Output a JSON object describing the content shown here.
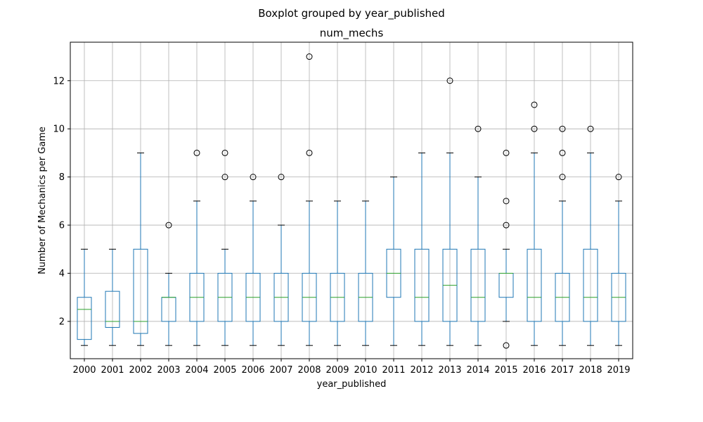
{
  "chart_data": {
    "type": "box",
    "suptitle": "Boxplot grouped by year_published",
    "title": "num_mechs",
    "xlabel": "year_published",
    "ylabel": "Number of Mechanics per Game",
    "ylim": [
      0.45,
      13.6
    ],
    "yticks": [
      2,
      4,
      6,
      8,
      10,
      12
    ],
    "grid": true,
    "colors": {
      "box": "#1f77b4",
      "median": "#2ca02c",
      "whisker": "#1f77b4",
      "cap": "#000000",
      "flier": "#000000",
      "grid": "#b0b0b0"
    },
    "categories": [
      "2000",
      "2001",
      "2002",
      "2003",
      "2004",
      "2005",
      "2006",
      "2007",
      "2008",
      "2009",
      "2010",
      "2011",
      "2012",
      "2013",
      "2014",
      "2015",
      "2016",
      "2017",
      "2018",
      "2019"
    ],
    "boxes": [
      {
        "q1": 1.25,
        "median": 2.5,
        "q3": 3,
        "whislo": 1,
        "whishi": 5,
        "fliers": []
      },
      {
        "q1": 1.75,
        "median": 2,
        "q3": 3.25,
        "whislo": 1,
        "whishi": 5,
        "fliers": []
      },
      {
        "q1": 1.5,
        "median": 2,
        "q3": 5,
        "whislo": 1,
        "whishi": 9,
        "fliers": []
      },
      {
        "q1": 2,
        "median": 3,
        "q3": 3,
        "whislo": 1,
        "whishi": 4,
        "fliers": [
          6
        ]
      },
      {
        "q1": 2,
        "median": 3,
        "q3": 4,
        "whislo": 1,
        "whishi": 7,
        "fliers": [
          9
        ]
      },
      {
        "q1": 2,
        "median": 3,
        "q3": 4,
        "whislo": 1,
        "whishi": 5,
        "fliers": [
          8,
          9
        ]
      },
      {
        "q1": 2,
        "median": 3,
        "q3": 4,
        "whislo": 1,
        "whishi": 7,
        "fliers": [
          8
        ]
      },
      {
        "q1": 2,
        "median": 3,
        "q3": 4,
        "whislo": 1,
        "whishi": 6,
        "fliers": [
          8
        ]
      },
      {
        "q1": 2,
        "median": 3,
        "q3": 4,
        "whislo": 1,
        "whishi": 7,
        "fliers": [
          9,
          13
        ]
      },
      {
        "q1": 2,
        "median": 3,
        "q3": 4,
        "whislo": 1,
        "whishi": 7,
        "fliers": []
      },
      {
        "q1": 2,
        "median": 3,
        "q3": 4,
        "whislo": 1,
        "whishi": 7,
        "fliers": []
      },
      {
        "q1": 3,
        "median": 4,
        "q3": 5,
        "whislo": 1,
        "whishi": 8,
        "fliers": []
      },
      {
        "q1": 2,
        "median": 3,
        "q3": 5,
        "whislo": 1,
        "whishi": 9,
        "fliers": []
      },
      {
        "q1": 2,
        "median": 3.5,
        "q3": 5,
        "whislo": 1,
        "whishi": 9,
        "fliers": [
          12
        ]
      },
      {
        "q1": 2,
        "median": 3,
        "q3": 5,
        "whislo": 1,
        "whishi": 8,
        "fliers": [
          10
        ]
      },
      {
        "q1": 3,
        "median": 4,
        "q3": 4,
        "whislo": 2,
        "whishi": 5,
        "fliers": [
          1,
          6,
          7,
          9
        ]
      },
      {
        "q1": 2,
        "median": 3,
        "q3": 5,
        "whislo": 1,
        "whishi": 9,
        "fliers": [
          10,
          11
        ]
      },
      {
        "q1": 2,
        "median": 3,
        "q3": 4,
        "whislo": 1,
        "whishi": 7,
        "fliers": [
          8,
          9,
          10
        ]
      },
      {
        "q1": 2,
        "median": 3,
        "q3": 5,
        "whislo": 1,
        "whishi": 9,
        "fliers": [
          10
        ]
      },
      {
        "q1": 2,
        "median": 3,
        "q3": 4,
        "whislo": 1,
        "whishi": 7,
        "fliers": [
          8
        ]
      }
    ]
  }
}
